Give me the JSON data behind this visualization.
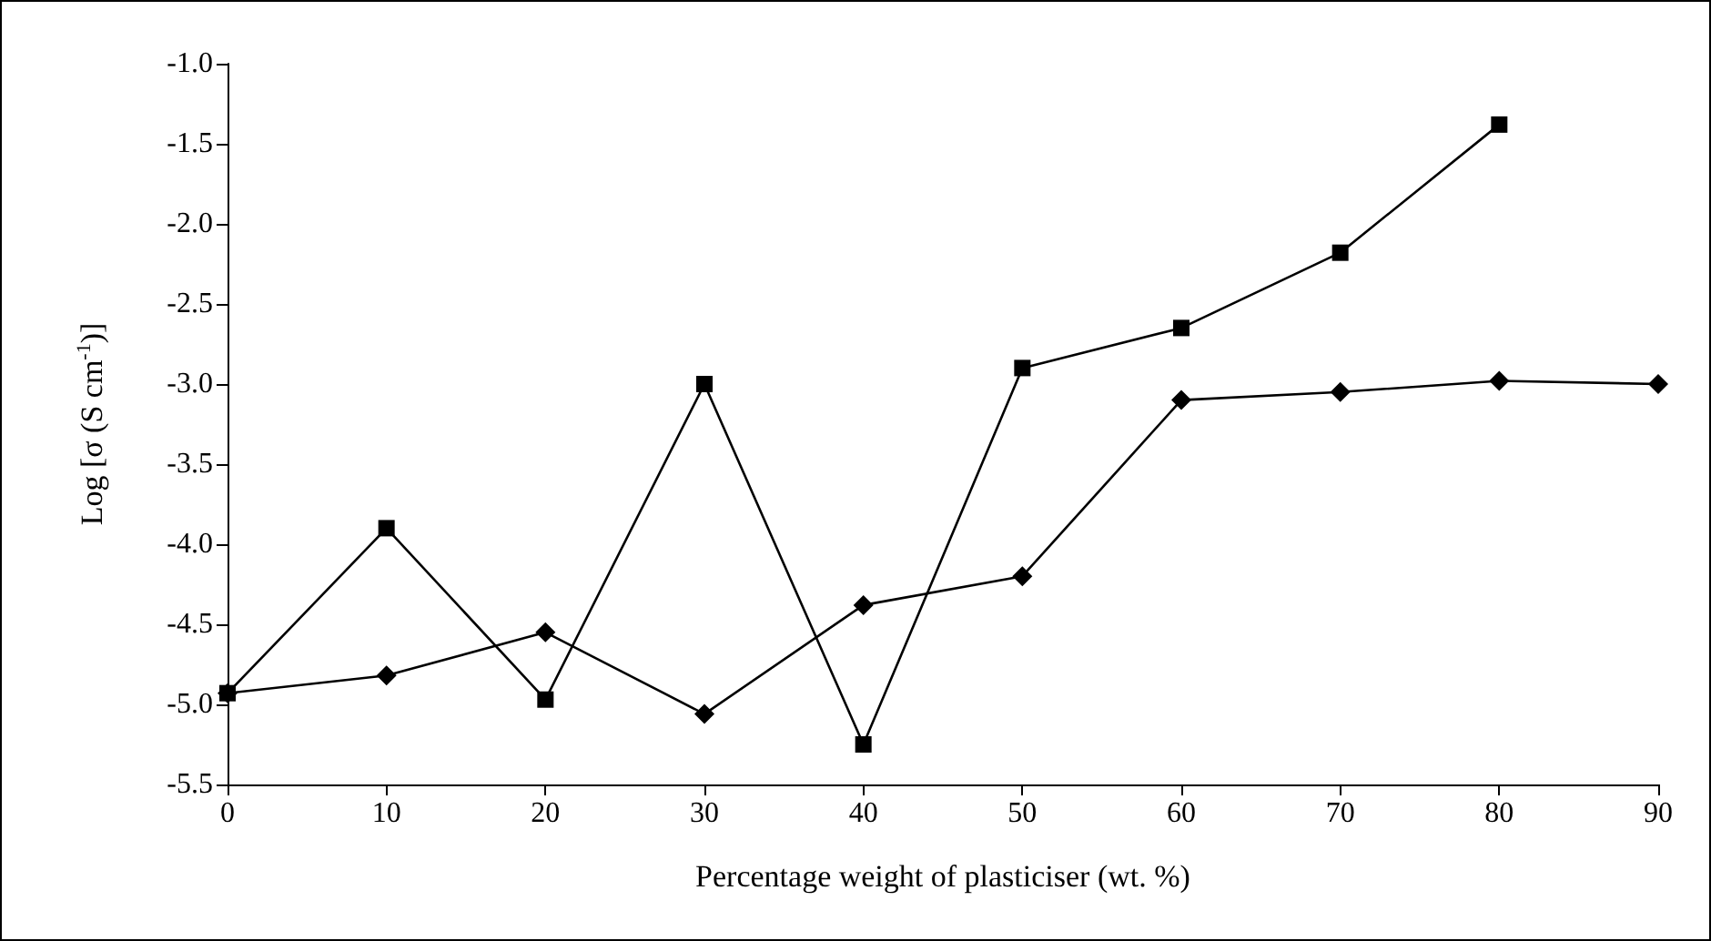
{
  "chart_data": {
    "type": "line",
    "xlabel": "Percentage weight of plasticiser (wt. %)",
    "ylabel": "Log [σ (S cm$^{-1}$)]",
    "xlim": [
      0,
      90
    ],
    "xticks": [
      0,
      10,
      20,
      30,
      40,
      50,
      60,
      70,
      80,
      90
    ],
    "ylim": [
      -5.5,
      -1.0
    ],
    "yticks": [
      {
        "value": -5.5,
        "label": "-5.5"
      },
      {
        "value": -5.0,
        "label": "-5.0"
      },
      {
        "value": -4.5,
        "label": "-4.5"
      },
      {
        "value": -4.0,
        "label": "-4.0"
      },
      {
        "value": -3.5,
        "label": "-3.5"
      },
      {
        "value": -3.0,
        "label": "-3.0"
      },
      {
        "value": -2.5,
        "label": "-2.5"
      },
      {
        "value": -2.0,
        "label": "-2.0"
      },
      {
        "value": -1.5,
        "label": "-1.5"
      },
      {
        "value": -1.0,
        "label": "-1.0"
      }
    ],
    "grid": false,
    "line_style": "solid",
    "series": [
      {
        "color": "#000000",
        "marker": "square",
        "x": [
          0,
          10,
          20,
          30,
          40,
          50,
          60,
          70,
          80
        ],
        "values": [
          -4.93,
          -3.9,
          -4.97,
          -3.0,
          -5.25,
          -2.9,
          -2.65,
          -2.18,
          -1.38
        ]
      },
      {
        "color": "#000000",
        "marker": "diamond",
        "x": [
          0,
          10,
          20,
          30,
          40,
          50,
          60,
          70,
          80,
          90
        ],
        "values": [
          -4.93,
          -4.82,
          -4.55,
          -5.06,
          -4.38,
          -4.2,
          -3.1,
          -3.05,
          -2.98,
          -3.0
        ]
      }
    ]
  }
}
